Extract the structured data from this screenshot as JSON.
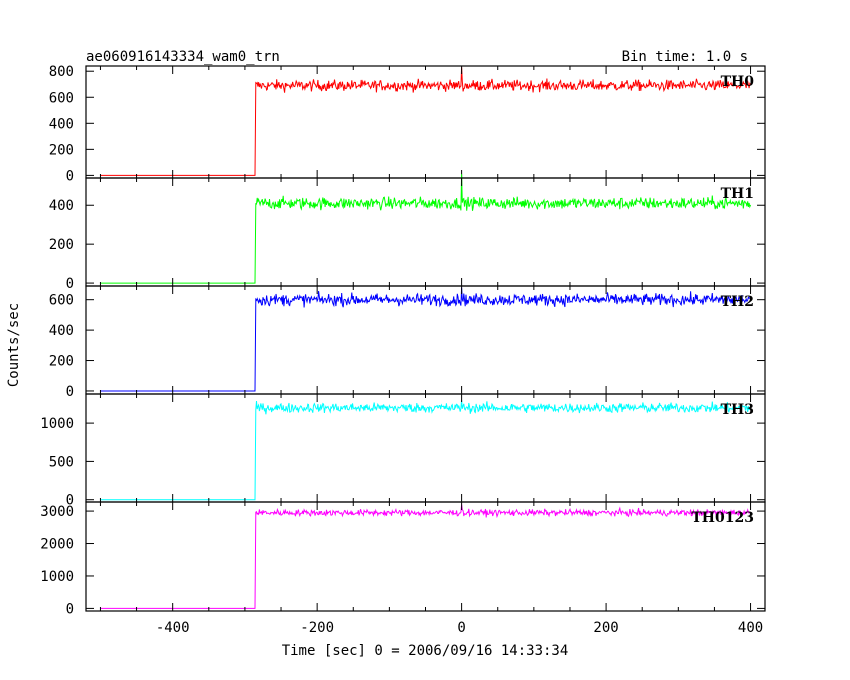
{
  "chart_data": {
    "type": "line",
    "title_left": "ae060916143334_wam0_trn",
    "title_right": "Bin time: 1.0 s",
    "xlabel": "Time [sec] 0 = 2006/09/16 14:33:34",
    "ylabel": "Counts/sec",
    "xlim": [
      -520,
      420
    ],
    "x_ticks": [
      -400,
      -200,
      0,
      200,
      400
    ],
    "grid": false,
    "step_time": -285,
    "panels": [
      {
        "name": "TH0",
        "color": "#ff0000",
        "ylim": [
          -20,
          840
        ],
        "y_ticks": [
          0,
          200,
          400,
          600,
          800
        ],
        "level_before": 0,
        "level_after": 690,
        "noise": 30,
        "spike_at": 0,
        "spike_value": 830
      },
      {
        "name": "TH1",
        "color": "#00ff00",
        "ylim": [
          -15,
          540
        ],
        "y_ticks": [
          0,
          200,
          400
        ],
        "level_before": 0,
        "level_after": 410,
        "noise": 22,
        "spike_at": 0,
        "spike_value": 560
      },
      {
        "name": "TH2",
        "color": "#0000ff",
        "ylim": [
          -20,
          690
        ],
        "y_ticks": [
          0,
          200,
          400,
          600
        ],
        "level_before": 0,
        "level_after": 600,
        "noise": 28,
        "spike_at": 0,
        "spike_value": 680
      },
      {
        "name": "TH3",
        "color": "#00ffff",
        "ylim": [
          -30,
          1380
        ],
        "y_ticks": [
          0,
          500,
          1000
        ],
        "level_before": 0,
        "level_after": 1200,
        "noise": 45,
        "spike_at": 0,
        "spike_value": 1300
      },
      {
        "name": "TH0123",
        "color": "#ff00ff",
        "ylim": [
          -80,
          3280
        ],
        "y_ticks": [
          0,
          1000,
          2000,
          3000
        ],
        "level_before": 0,
        "level_after": 2950,
        "noise": 70,
        "spike_at": 0,
        "spike_value": 3200
      }
    ]
  }
}
